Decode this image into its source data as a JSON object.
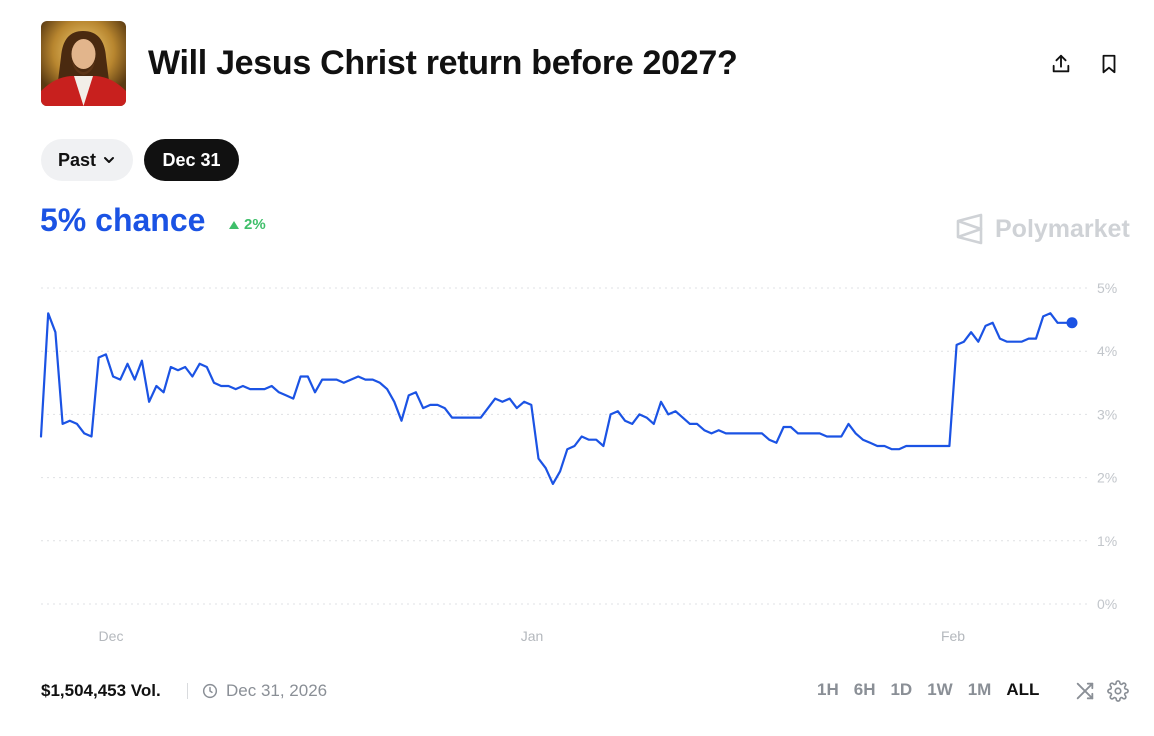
{
  "header": {
    "title": "Will Jesus Christ return before 2027?",
    "thumbnail_icon": "jesus-portrait-image",
    "share_icon": "share-icon",
    "bookmark_icon": "bookmark-icon"
  },
  "filters": {
    "past_label": "Past",
    "selected_date": "Dec 31"
  },
  "summary": {
    "chance_text": "5% chance",
    "delta_text": "2%",
    "delta_direction": "up",
    "accent_color": "#1b53e4",
    "delta_color": "#3fbf6a"
  },
  "brand": {
    "name": "Polymarket"
  },
  "chart_data": {
    "type": "line",
    "x_labels": [
      "Dec",
      "Jan",
      "Feb"
    ],
    "y_ticks": [
      "5%",
      "4%",
      "3%",
      "2%",
      "1%",
      "0%"
    ],
    "ylim": [
      0,
      5
    ],
    "grid": true,
    "line_color": "#1b53e4",
    "series": [
      {
        "values": [
          2.65,
          4.6,
          4.3,
          2.85,
          2.9,
          2.85,
          2.7,
          2.65,
          3.9,
          3.95,
          3.6,
          3.55,
          3.8,
          3.55,
          3.85,
          3.2,
          3.45,
          3.35,
          3.75,
          3.7,
          3.75,
          3.6,
          3.8,
          3.75,
          3.5,
          3.45,
          3.45,
          3.4,
          3.45,
          3.4,
          3.4,
          3.4,
          3.45,
          3.35,
          3.3,
          3.25,
          3.6,
          3.6,
          3.35,
          3.55,
          3.55,
          3.55,
          3.5,
          3.55,
          3.6,
          3.55,
          3.55,
          3.5,
          3.4,
          3.2,
          2.9,
          3.3,
          3.35,
          3.1,
          3.15,
          3.15,
          3.1,
          2.95,
          2.95,
          2.95,
          2.95,
          2.95,
          3.1,
          3.25,
          3.2,
          3.25,
          3.1,
          3.2,
          3.15,
          2.3,
          2.15,
          1.9,
          2.1,
          2.45,
          2.5,
          2.65,
          2.6,
          2.6,
          2.5,
          3.0,
          3.05,
          2.9,
          2.85,
          3.0,
          2.95,
          2.85,
          3.2,
          3.0,
          3.05,
          2.95,
          2.85,
          2.85,
          2.75,
          2.7,
          2.75,
          2.7,
          2.7,
          2.7,
          2.7,
          2.7,
          2.7,
          2.6,
          2.55,
          2.8,
          2.8,
          2.7,
          2.7,
          2.7,
          2.7,
          2.65,
          2.65,
          2.65,
          2.85,
          2.7,
          2.6,
          2.55,
          2.5,
          2.5,
          2.45,
          2.45,
          2.5,
          2.5,
          2.5,
          2.5,
          2.5,
          2.5,
          2.5,
          4.1,
          4.15,
          4.3,
          4.15,
          4.4,
          4.45,
          4.2,
          4.15,
          4.15,
          4.15,
          4.2,
          4.2,
          4.55,
          4.6,
          4.45,
          4.45,
          4.45
        ]
      }
    ]
  },
  "footer": {
    "volume": "$1,504,453 Vol.",
    "end_date": "Dec 31, 2026",
    "clock_icon": "clock-icon",
    "ranges": [
      "1H",
      "6H",
      "1D",
      "1W",
      "1M",
      "ALL"
    ],
    "active_range": "ALL",
    "shuffle_icon": "shuffle-icon",
    "settings_icon": "gear-icon"
  }
}
